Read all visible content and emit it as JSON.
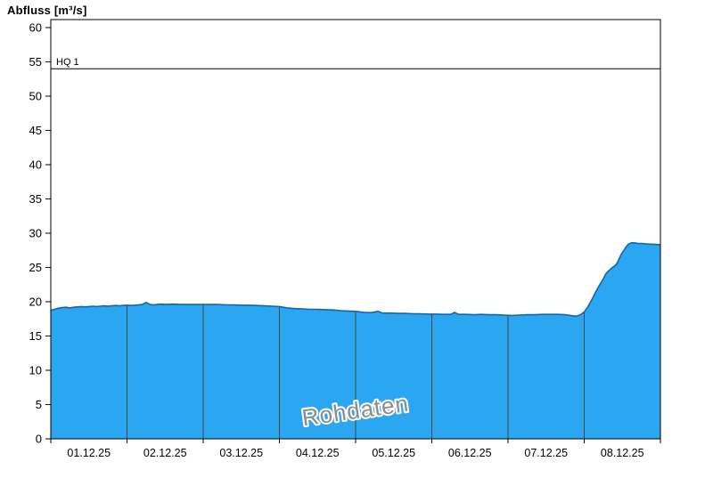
{
  "header": {
    "title": "Abfluss [m³/s]"
  },
  "chart_data": {
    "type": "area",
    "title": "Abfluss [m³/s]",
    "ylabel": "Abfluss [m³/s]",
    "xlabel": "",
    "watermark": "Rohdaten",
    "legend": [],
    "grid": "vertical-day-boundaries-inside-fill",
    "ylim": [
      0,
      60
    ],
    "y_ticks": [
      0,
      5,
      10,
      15,
      20,
      25,
      30,
      35,
      40,
      45,
      50,
      55,
      60
    ],
    "x_range_days": 8,
    "x_day_labels": [
      "01.12.25",
      "02.12.25",
      "03.12.25",
      "04.12.25",
      "05.12.25",
      "06.12.25",
      "07.12.25",
      "08.12.25"
    ],
    "threshold": {
      "label": "HQ 1",
      "value": 54
    },
    "colors": {
      "fill": "#2aa7f0",
      "stroke": "#1565aa",
      "grid_in_fill": "#444444",
      "threshold_line": "#000000",
      "axis": "#000000",
      "watermark": "#8c8c8c",
      "watermark_halo": "#ffffff"
    },
    "series": [
      {
        "name": "Rohdaten",
        "unit": "m³/s",
        "points": [
          [
            0.0,
            18.75
          ],
          [
            0.05,
            18.9
          ],
          [
            0.1,
            19.05
          ],
          [
            0.15,
            19.15
          ],
          [
            0.2,
            19.2
          ],
          [
            0.25,
            19.1
          ],
          [
            0.3,
            19.2
          ],
          [
            0.35,
            19.25
          ],
          [
            0.4,
            19.3
          ],
          [
            0.45,
            19.25
          ],
          [
            0.5,
            19.3
          ],
          [
            0.55,
            19.35
          ],
          [
            0.6,
            19.3
          ],
          [
            0.65,
            19.35
          ],
          [
            0.7,
            19.4
          ],
          [
            0.75,
            19.35
          ],
          [
            0.8,
            19.4
          ],
          [
            0.85,
            19.45
          ],
          [
            0.9,
            19.4
          ],
          [
            0.95,
            19.45
          ],
          [
            1.0,
            19.5
          ],
          [
            1.05,
            19.45
          ],
          [
            1.1,
            19.5
          ],
          [
            1.15,
            19.55
          ],
          [
            1.2,
            19.6
          ],
          [
            1.25,
            19.9
          ],
          [
            1.3,
            19.6
          ],
          [
            1.35,
            19.55
          ],
          [
            1.4,
            19.6
          ],
          [
            1.45,
            19.65
          ],
          [
            1.5,
            19.6
          ],
          [
            1.6,
            19.65
          ],
          [
            1.7,
            19.6
          ],
          [
            1.8,
            19.6
          ],
          [
            1.9,
            19.6
          ],
          [
            2.0,
            19.6
          ],
          [
            2.1,
            19.6
          ],
          [
            2.2,
            19.6
          ],
          [
            2.3,
            19.55
          ],
          [
            2.4,
            19.55
          ],
          [
            2.5,
            19.5
          ],
          [
            2.6,
            19.5
          ],
          [
            2.7,
            19.45
          ],
          [
            2.8,
            19.4
          ],
          [
            2.9,
            19.35
          ],
          [
            3.0,
            19.3
          ],
          [
            3.1,
            19.1
          ],
          [
            3.2,
            19.0
          ],
          [
            3.3,
            18.95
          ],
          [
            3.4,
            18.9
          ],
          [
            3.5,
            18.9
          ],
          [
            3.6,
            18.85
          ],
          [
            3.7,
            18.8
          ],
          [
            3.8,
            18.7
          ],
          [
            3.9,
            18.65
          ],
          [
            4.0,
            18.6
          ],
          [
            4.1,
            18.45
          ],
          [
            4.2,
            18.4
          ],
          [
            4.3,
            18.6
          ],
          [
            4.35,
            18.35
          ],
          [
            4.45,
            18.35
          ],
          [
            4.55,
            18.3
          ],
          [
            4.65,
            18.3
          ],
          [
            4.75,
            18.25
          ],
          [
            4.85,
            18.25
          ],
          [
            4.95,
            18.2
          ],
          [
            5.05,
            18.2
          ],
          [
            5.15,
            18.15
          ],
          [
            5.25,
            18.15
          ],
          [
            5.3,
            18.45
          ],
          [
            5.35,
            18.15
          ],
          [
            5.45,
            18.15
          ],
          [
            5.55,
            18.1
          ],
          [
            5.65,
            18.15
          ],
          [
            5.75,
            18.1
          ],
          [
            5.85,
            18.1
          ],
          [
            5.95,
            18.05
          ],
          [
            6.05,
            18.0
          ],
          [
            6.15,
            18.05
          ],
          [
            6.25,
            18.1
          ],
          [
            6.35,
            18.1
          ],
          [
            6.45,
            18.15
          ],
          [
            6.55,
            18.15
          ],
          [
            6.65,
            18.15
          ],
          [
            6.75,
            18.1
          ],
          [
            6.85,
            17.95
          ],
          [
            6.9,
            17.9
          ],
          [
            6.95,
            18.1
          ],
          [
            7.0,
            18.5
          ],
          [
            7.05,
            19.3
          ],
          [
            7.1,
            20.3
          ],
          [
            7.15,
            21.4
          ],
          [
            7.2,
            22.4
          ],
          [
            7.25,
            23.3
          ],
          [
            7.28,
            24.0
          ],
          [
            7.31,
            24.4
          ],
          [
            7.34,
            24.7
          ],
          [
            7.37,
            25.0
          ],
          [
            7.4,
            25.2
          ],
          [
            7.43,
            25.6
          ],
          [
            7.46,
            26.3
          ],
          [
            7.49,
            27.0
          ],
          [
            7.52,
            27.5
          ],
          [
            7.55,
            28.0
          ],
          [
            7.58,
            28.4
          ],
          [
            7.62,
            28.6
          ],
          [
            7.66,
            28.6
          ],
          [
            7.7,
            28.5
          ],
          [
            7.75,
            28.5
          ],
          [
            7.8,
            28.45
          ],
          [
            7.85,
            28.4
          ],
          [
            7.9,
            28.4
          ],
          [
            7.95,
            28.35
          ],
          [
            8.0,
            28.3
          ]
        ]
      }
    ]
  }
}
